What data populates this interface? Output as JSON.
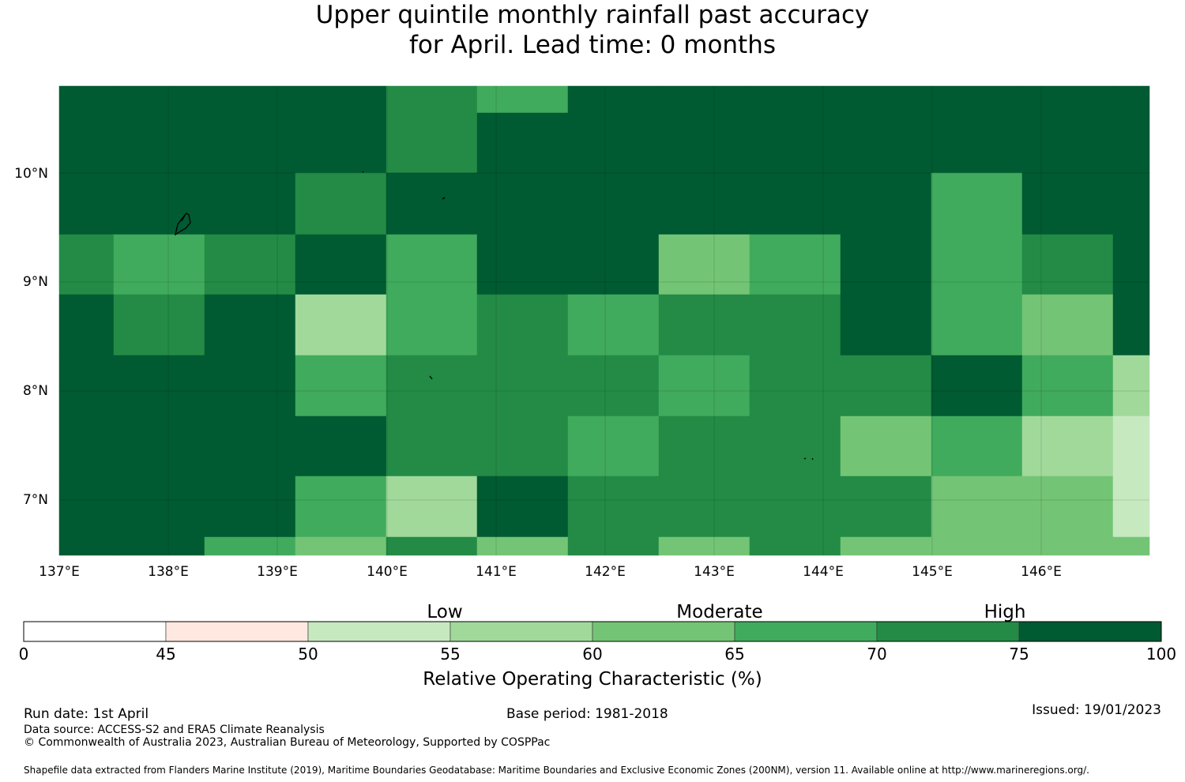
{
  "title": {
    "line1": "Upper quintile monthly rainfall past accuracy",
    "line2": "for April. Lead time: 0 months"
  },
  "map": {
    "lat_ticks": [
      "10°N",
      "9°N",
      "8°N",
      "7°N"
    ],
    "lon_ticks": [
      "137°E",
      "138°E",
      "139°E",
      "140°E",
      "141°E",
      "142°E",
      "143°E",
      "144°E",
      "145°E",
      "146°E"
    ],
    "colors": [
      "#005a32",
      "#238b45",
      "#41ab5d",
      "#74c476",
      "#a1d99b",
      "#c7e9c0",
      "#fee8e0",
      "#ffffff"
    ]
  },
  "colorbar": {
    "ticks": [
      "0",
      "45",
      "50",
      "55",
      "60",
      "65",
      "70",
      "75",
      "100"
    ],
    "colors": [
      "#ffffff",
      "#fee8e0",
      "#c7e9c0",
      "#a1d99b",
      "#74c476",
      "#41ab5d",
      "#238b45",
      "#005a32"
    ],
    "category_labels": [
      "Low",
      "Moderate",
      "High"
    ],
    "label": "Relative Operating Characteristic (%)"
  },
  "footer": {
    "run_date": "Run date: 1st April",
    "base_period": "Base period: 1981-2018",
    "issued": "Issued: 19/01/2023",
    "data_source": "Data source: ACCESS-S2 and ERA5 Climate Reanalysis",
    "copyright": "© Commonwealth of Australia 2023, Australian Bureau of Meteorology, Supported by COSPPac",
    "shapefile": "Shapefile data extracted from Flanders Marine Institute (2019), Maritime Boundaries Geodatabase: Maritime Boundaries and Exclusive Economic Zones (200NM), version 11. Available online at http://www.marineregions.org/."
  }
}
